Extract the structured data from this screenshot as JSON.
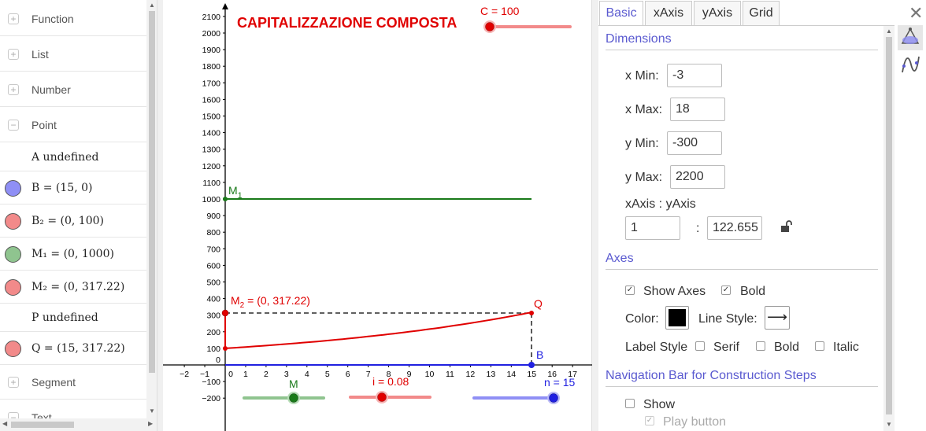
{
  "algebra": {
    "rows": [
      {
        "kind": "category",
        "sign": "+",
        "label": "Function"
      },
      {
        "kind": "category",
        "sign": "+",
        "label": "List"
      },
      {
        "kind": "category",
        "sign": "+",
        "label": "Number"
      },
      {
        "kind": "category",
        "sign": "−",
        "label": "Point"
      },
      {
        "kind": "object",
        "text": "A undefined",
        "color": null
      },
      {
        "kind": "object",
        "text": "B = (15, 0)",
        "color": "#8f8ff5"
      },
      {
        "kind": "object",
        "text": "B₂ = (0, 100)",
        "color": "#f28a8a"
      },
      {
        "kind": "object",
        "text": "M₁ = (0, 1000)",
        "color": "#8fc48f"
      },
      {
        "kind": "object",
        "text": "M₂ = (0, 317.22)",
        "color": "#f28a8a"
      },
      {
        "kind": "object",
        "text": "P undefined",
        "color": null
      },
      {
        "kind": "object",
        "text": "Q = (15, 317.22)",
        "color": "#f28a8a"
      },
      {
        "kind": "category",
        "sign": "+",
        "label": "Segment"
      },
      {
        "kind": "category",
        "sign": "−",
        "label": "Text"
      }
    ]
  },
  "graphics": {
    "title": "CAPITALIZZAZIONE COMPOSTA",
    "title_color": "#e00000",
    "xticks": [
      "−2",
      "−1",
      "0",
      "1",
      "2",
      "3",
      "4",
      "5",
      "6",
      "7",
      "8",
      "9",
      "10",
      "11",
      "12",
      "13",
      "14",
      "15",
      "16",
      "17"
    ],
    "yticks": [
      "−200",
      "−100",
      "0",
      "100",
      "200",
      "300",
      "400",
      "500",
      "600",
      "700",
      "800",
      "900",
      "1000",
      "1100",
      "1200",
      "1300",
      "1400",
      "1500",
      "1600",
      "1700",
      "1800",
      "1900",
      "2000",
      "2100"
    ],
    "labels": {
      "m1": "M",
      "m1_sub": "1",
      "m2": "M",
      "m2_sub": "2",
      "m2_value": " = (0, 317.22)",
      "q": "Q",
      "b": "B"
    },
    "sliders": {
      "c": {
        "label": "C = 100",
        "color": "#e00000"
      },
      "m": {
        "label": "M",
        "color": "#1a7a1a"
      },
      "i": {
        "label": "i = 0.08",
        "color": "#e00000"
      },
      "n": {
        "label": "n = 15",
        "color": "#2020e0"
      }
    },
    "colors": {
      "green": "#1a7a1a",
      "red": "#e00000",
      "blue": "#2020e0"
    }
  },
  "chart_data": {
    "type": "line",
    "title": "CAPITALIZZAZIONE COMPOSTA",
    "xlim": [
      -3,
      18
    ],
    "ylim": [
      -300,
      2200
    ],
    "series": [
      {
        "name": "M1",
        "x": [
          0,
          15
        ],
        "y": [
          1000,
          1000
        ]
      },
      {
        "x": [
          0,
          15
        ],
        "y": [
          100,
          317.22
        ]
      }
    ],
    "points": [
      {
        "name": "B",
        "x": 15,
        "y": 0
      },
      {
        "name": "B2",
        "x": 0,
        "y": 100
      },
      {
        "name": "M1",
        "x": 0,
        "y": 1000
      },
      {
        "name": "M2",
        "x": 0,
        "y": 317.22
      },
      {
        "name": "Q",
        "x": 15,
        "y": 317.22
      }
    ],
    "sliders": [
      {
        "name": "C",
        "value": 100
      },
      {
        "name": "M"
      },
      {
        "name": "i",
        "value": 0.08
      },
      {
        "name": "n",
        "value": 15
      }
    ]
  },
  "props": {
    "tabs": [
      "Basic",
      "xAxis",
      "yAxis",
      "Grid"
    ],
    "active_tab": "Basic",
    "dimensions_header": "Dimensions",
    "xmin_label": "x Min:",
    "xmin_value": "-3",
    "xmax_label": "x Max:",
    "xmax_value": "18",
    "ymin_label": "y Min:",
    "ymin_value": "-300",
    "ymax_label": "y Max:",
    "ymax_value": "2200",
    "ratio_label": "xAxis : yAxis",
    "ratio_x": "1",
    "ratio_sep": ":",
    "ratio_y": "122.655",
    "axes_header": "Axes",
    "show_axes_label": "Show Axes",
    "bold_label": "Bold",
    "color_label": "Color:",
    "line_style_label": "Line Style:",
    "line_style_value": "⟶",
    "label_style_label": "Label Style",
    "serif_label": "Serif",
    "bold2_label": "Bold",
    "italic_label": "Italic",
    "navbar_header": "Navigation Bar for Construction Steps",
    "show_label": "Show",
    "play_label": "Play button",
    "close_icon": "✕"
  }
}
